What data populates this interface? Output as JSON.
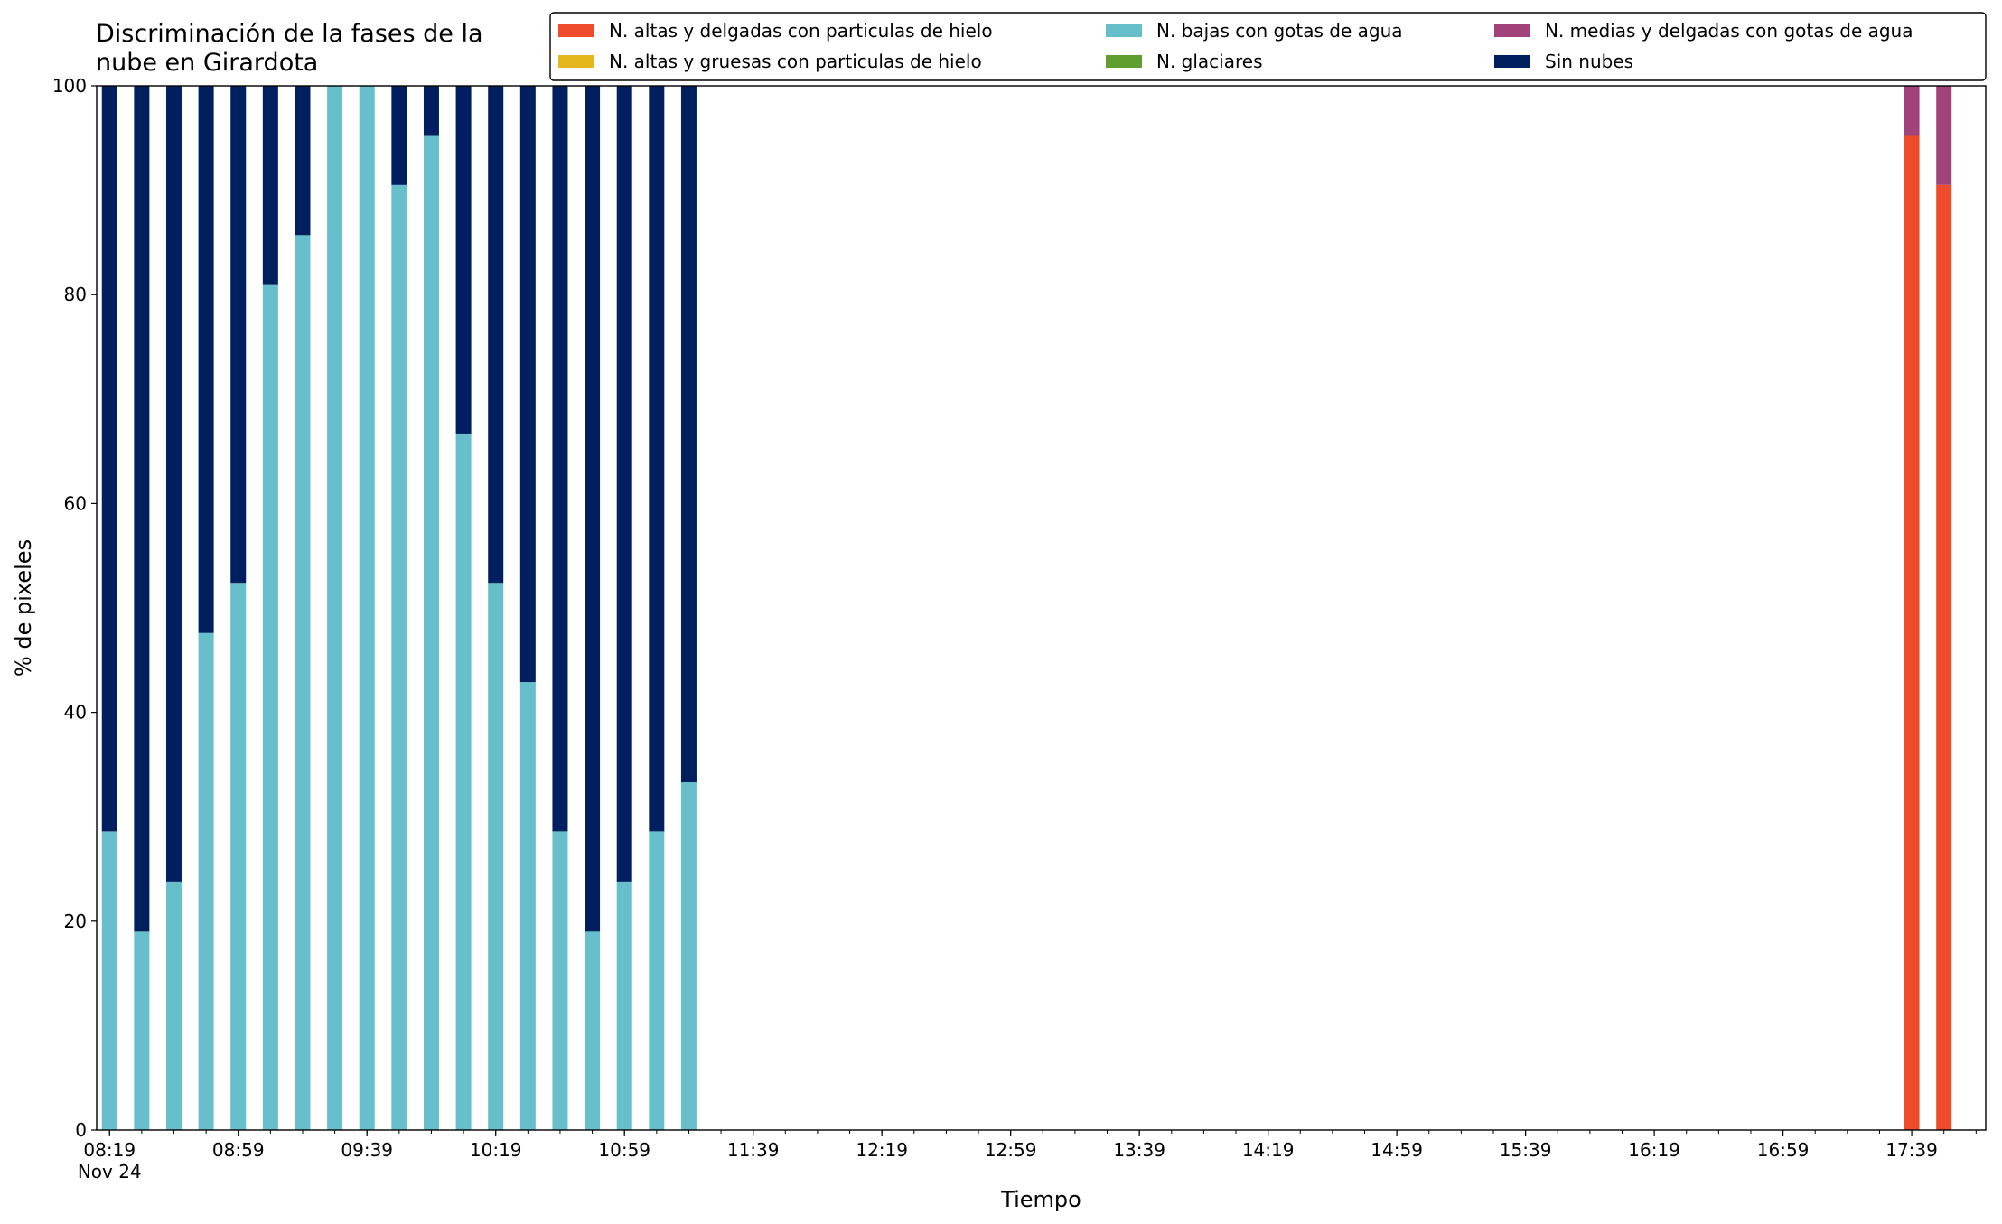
{
  "chart_data": {
    "type": "stacked_bar",
    "title": "Discriminación de la fases de la\nnube en Girardota",
    "xlabel": "Tiempo",
    "ylabel": "% de pixeles",
    "x": [
      "08:19",
      "08:29",
      "08:39",
      "08:49",
      "08:59",
      "09:09",
      "09:19",
      "09:29",
      "09:39",
      "09:49",
      "09:59",
      "10:09",
      "10:19",
      "10:29",
      "10:39",
      "10:49",
      "10:59",
      "11:09",
      "11:19",
      "17:39",
      "17:49"
    ],
    "x_date_label": "Nov 24",
    "xlim": [
      "08:15",
      "18:02"
    ],
    "xticks": [
      "08:19",
      "08:59",
      "09:39",
      "10:19",
      "10:59",
      "11:39",
      "12:19",
      "12:59",
      "13:39",
      "14:19",
      "14:59",
      "15:39",
      "16:19",
      "16:59",
      "17:39"
    ],
    "ylim": [
      0,
      100
    ],
    "yticks": [
      0,
      20,
      40,
      60,
      80,
      100
    ],
    "grid": false,
    "series": [
      {
        "name": "N. altas y delgadas con particulas de hielo",
        "color": "#ee4b2b",
        "values": [
          0,
          0,
          0,
          0,
          0,
          0,
          0,
          0,
          0,
          0,
          0,
          0,
          0,
          0,
          0,
          0,
          0,
          0,
          0,
          95.2,
          90.5
        ]
      },
      {
        "name": "N. altas y gruesas con particulas de hielo",
        "color": "#e4b81c",
        "values": [
          0,
          0,
          0,
          0,
          0,
          0,
          0,
          0,
          0,
          0,
          0,
          0,
          0,
          0,
          0,
          0,
          0,
          0,
          0,
          0,
          0
        ]
      },
      {
        "name": "N. bajas con gotas de agua",
        "color": "#67bfcb",
        "values": [
          28.6,
          19.0,
          23.8,
          47.6,
          52.4,
          81.0,
          85.7,
          100,
          100,
          90.5,
          95.2,
          66.7,
          52.4,
          42.9,
          28.6,
          19.0,
          23.8,
          28.6,
          33.3,
          0,
          0
        ]
      },
      {
        "name": "N. glaciares",
        "color": "#5e9e2e",
        "values": [
          0,
          0,
          0,
          0,
          0,
          0,
          0,
          0,
          0,
          0,
          0,
          0,
          0,
          0,
          0,
          0,
          0,
          0,
          0,
          0,
          0
        ]
      },
      {
        "name": "N. medias y delgadas con gotas de agua",
        "color": "#a2427a",
        "values": [
          0,
          0,
          0,
          0,
          0,
          0,
          0,
          0,
          0,
          0,
          0,
          0,
          0,
          0,
          0,
          0,
          0,
          0,
          0,
          4.8,
          9.5
        ]
      },
      {
        "name": "Sin nubes",
        "color": "#001f5f",
        "values": [
          71.4,
          81.0,
          76.2,
          52.4,
          47.6,
          19.0,
          14.3,
          0,
          0,
          9.5,
          4.8,
          33.3,
          47.6,
          57.1,
          71.4,
          81.0,
          76.2,
          71.4,
          66.7,
          0,
          0
        ]
      }
    ]
  }
}
